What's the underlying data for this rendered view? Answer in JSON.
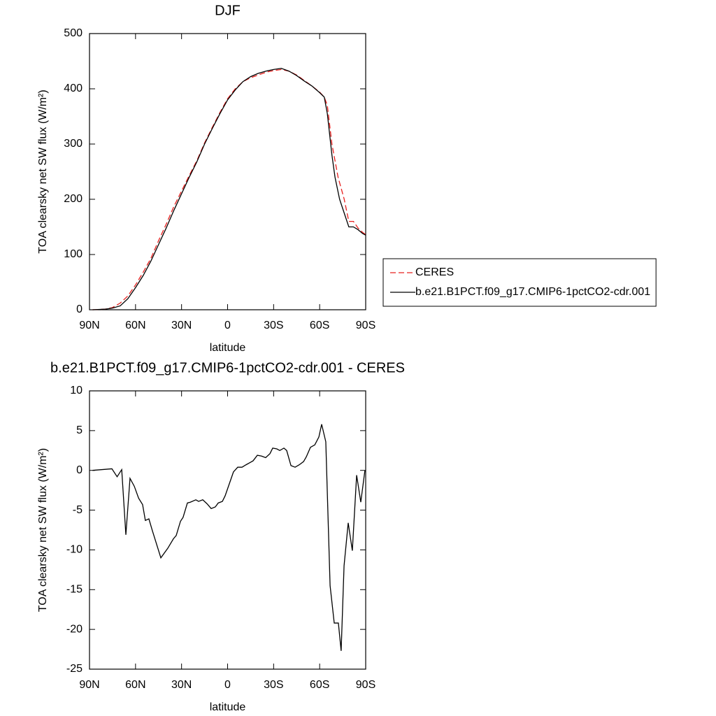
{
  "chart_data": [
    {
      "type": "line",
      "title": "DJF",
      "xlabel": "latitude",
      "ylabel": "TOA clearsky net SW flux (W/m²)",
      "xlim": [
        90,
        -90
      ],
      "xticks": [
        {
          "value": 90,
          "label": "90N"
        },
        {
          "value": 60,
          "label": "60N"
        },
        {
          "value": 30,
          "label": "30N"
        },
        0,
        {
          "value": -30,
          "label": "30S"
        },
        {
          "value": -60,
          "label": "60S"
        },
        {
          "value": -90,
          "label": "90S"
        }
      ],
      "ylim": [
        0,
        500
      ],
      "yticks": [
        0,
        100,
        200,
        300,
        400,
        500
      ],
      "legend": "right",
      "series": [
        {
          "name": "CERES",
          "color": "#e8201e",
          "line_style": "dashed",
          "x": [
            88,
            80,
            75,
            70,
            65,
            60,
            55,
            50,
            45,
            40,
            35,
            30,
            25,
            20,
            15,
            10,
            5,
            0,
            -5,
            -10,
            -15,
            -20,
            -25,
            -30,
            -35,
            -40,
            -45,
            -50,
            -55,
            -60,
            -63,
            -65,
            -68,
            -72,
            -76,
            -79,
            -82,
            -85,
            -88,
            -90
          ],
          "values": [
            0,
            1,
            4,
            12,
            25,
            45,
            68,
            93,
            125,
            155,
            187,
            215,
            243,
            270,
            302,
            330,
            357,
            382,
            400,
            413,
            420,
            425,
            430,
            433,
            435,
            432,
            425,
            415,
            405,
            394,
            385,
            370,
            300,
            240,
            200,
            160,
            160,
            148,
            140,
            136
          ]
        },
        {
          "name": "b.e21.B1PCT.f09_g17.CMIP6-1pctCO2-cdr.001",
          "color": "#000000",
          "line_style": "solid",
          "x": [
            88,
            80,
            75,
            70,
            65,
            60,
            55,
            50,
            45,
            40,
            35,
            30,
            25,
            20,
            15,
            10,
            5,
            0,
            -5,
            -10,
            -15,
            -20,
            -25,
            -30,
            -35,
            -40,
            -45,
            -50,
            -55,
            -60,
            -63,
            -65,
            -68,
            -70,
            -73,
            -76,
            -79,
            -82,
            -85,
            -88,
            -90
          ],
          "values": [
            0,
            1,
            3,
            7,
            20,
            40,
            62,
            88,
            118,
            148,
            180,
            210,
            240,
            268,
            300,
            328,
            355,
            380,
            398,
            413,
            422,
            428,
            432,
            435,
            437,
            432,
            424,
            414,
            405,
            393,
            385,
            355,
            280,
            240,
            200,
            175,
            150,
            150,
            145,
            138,
            135
          ]
        }
      ]
    },
    {
      "type": "line",
      "title": "b.e21.B1PCT.f09_g17.CMIP6-1pctCO2-cdr.001 - CERES",
      "xlabel": "latitude",
      "ylabel": "TOA clearsky net SW flux (W/m²)",
      "xlim": [
        90,
        -90
      ],
      "xticks": [
        {
          "value": 90,
          "label": "90N"
        },
        {
          "value": 60,
          "label": "60N"
        },
        {
          "value": 30,
          "label": "30N"
        },
        0,
        {
          "value": -30,
          "label": "30S"
        },
        {
          "value": -60,
          "label": "60S"
        },
        {
          "value": -90,
          "label": "90S"
        }
      ],
      "ylim": [
        -25,
        10
      ],
      "yticks": [
        -25,
        -20,
        -15,
        -10,
        -5,
        0,
        5,
        10
      ],
      "series": [
        {
          "color": "#000000",
          "line_style": "solid",
          "x": [
            88,
            75.4,
            72,
            69,
            66.3,
            63.6,
            60.8,
            58,
            55.4,
            53.6,
            51.3,
            49,
            43.5,
            39,
            35.3,
            33.5,
            30.7,
            29,
            26.2,
            24.3,
            20.7,
            18.9,
            16.2,
            13.4,
            10.7,
            8,
            6.1,
            3.4,
            1.6,
            -2,
            -3.8,
            -6.6,
            -9.4,
            -12,
            -14.8,
            -16.6,
            -19.4,
            -22.1,
            -24.8,
            -27.6,
            -29.4,
            -32.1,
            -34,
            -36.7,
            -38.5,
            -41.3,
            -44,
            -46.7,
            -49.5,
            -51.3,
            -54,
            -56.8,
            -59.5,
            -61.3,
            -64,
            -66.8,
            -69.5,
            -72.2,
            -74,
            -75.9,
            -78.6,
            -81.3,
            -84.1,
            -86.8,
            -89.5
          ],
          "values": [
            0,
            0.2,
            -0.8,
            0.1,
            -8.1,
            -1,
            -2,
            -3.5,
            -4.3,
            -6.3,
            -6.1,
            -7.6,
            -11,
            -9.8,
            -8.6,
            -8.2,
            -6.4,
            -5.9,
            -4.1,
            -4,
            -3.7,
            -3.9,
            -3.7,
            -4.2,
            -4.8,
            -4.6,
            -4.1,
            -3.9,
            -3.2,
            -1.2,
            -0.2,
            0.4,
            0.4,
            0.7,
            1,
            1.2,
            1.9,
            1.8,
            1.6,
            2.1,
            2.8,
            2.7,
            2.5,
            2.8,
            2.5,
            0.6,
            0.4,
            0.7,
            1.1,
            1.7,
            2.9,
            3.2,
            4.2,
            5.8,
            3.6,
            -14.5,
            -19.2,
            -19.2,
            -22.7,
            -12,
            -6.6,
            -10.1,
            -0.6,
            -4,
            0
          ]
        }
      ]
    }
  ]
}
